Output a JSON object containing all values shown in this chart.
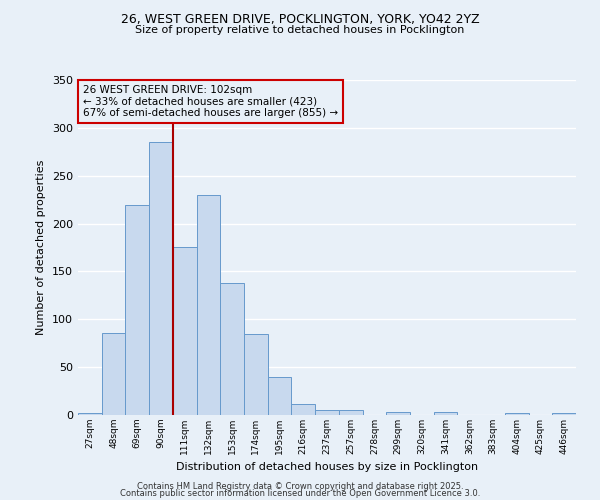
{
  "title1": "26, WEST GREEN DRIVE, POCKLINGTON, YORK, YO42 2YZ",
  "title2": "Size of property relative to detached houses in Pocklington",
  "xlabel": "Distribution of detached houses by size in Pocklington",
  "ylabel": "Number of detached properties",
  "bar_color": "#c8d9ee",
  "bar_edge_color": "#6699cc",
  "categories": [
    "27sqm",
    "48sqm",
    "69sqm",
    "90sqm",
    "111sqm",
    "132sqm",
    "153sqm",
    "174sqm",
    "195sqm",
    "216sqm",
    "237sqm",
    "257sqm",
    "278sqm",
    "299sqm",
    "320sqm",
    "341sqm",
    "362sqm",
    "383sqm",
    "404sqm",
    "425sqm",
    "446sqm"
  ],
  "values": [
    2,
    86,
    219,
    285,
    175,
    230,
    138,
    85,
    40,
    11,
    5,
    5,
    0,
    3,
    0,
    3,
    0,
    0,
    2,
    0,
    2
  ],
  "property_line_color": "#aa0000",
  "annotation_text": "26 WEST GREEN DRIVE: 102sqm\n← 33% of detached houses are smaller (423)\n67% of semi-detached houses are larger (855) →",
  "annotation_box_color": "#cc0000",
  "ylim": [
    0,
    350
  ],
  "yticks": [
    0,
    50,
    100,
    150,
    200,
    250,
    300,
    350
  ],
  "footer1": "Contains HM Land Registry data © Crown copyright and database right 2025.",
  "footer2": "Contains public sector information licensed under the Open Government Licence 3.0.",
  "bg_color": "#e8f0f8",
  "grid_color": "#ffffff",
  "property_bin_index": 3
}
